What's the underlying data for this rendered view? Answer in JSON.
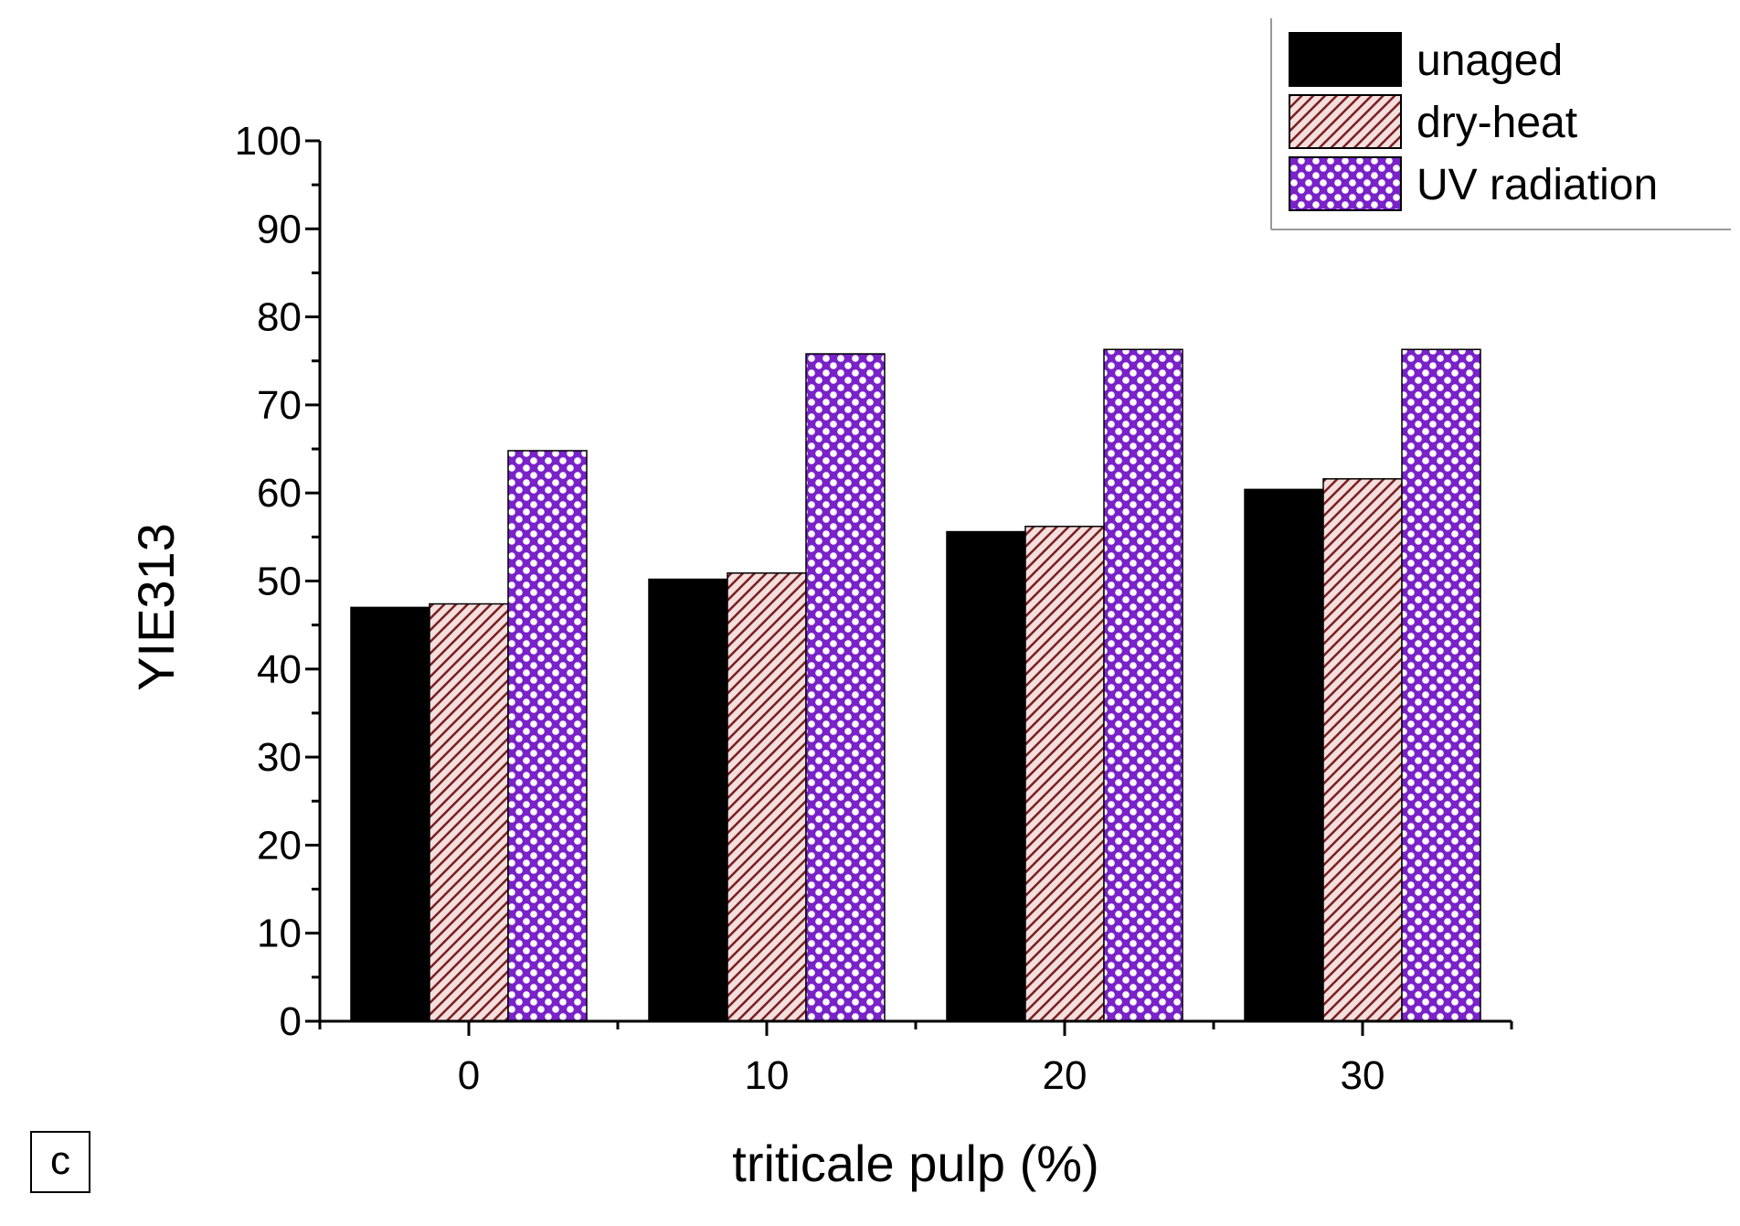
{
  "chart_data": {
    "type": "bar",
    "title": "",
    "xlabel": "triticale pulp (%)",
    "ylabel": "YIE313",
    "categories": [
      "0",
      "10",
      "20",
      "30"
    ],
    "series": [
      {
        "name": "unaged",
        "values": [
          47.0,
          50.2,
          55.6,
          60.4
        ],
        "color": "#000000",
        "pattern": "solid"
      },
      {
        "name": "dry-heat",
        "values": [
          47.4,
          50.9,
          56.2,
          61.6
        ],
        "color": "#7a1f1f",
        "pattern": "diagonal"
      },
      {
        "name": "UV radiation",
        "values": [
          64.8,
          75.8,
          76.3,
          76.3
        ],
        "color": "#7a22c9",
        "pattern": "crosshatch"
      }
    ],
    "ylim": [
      0,
      100
    ],
    "yticks": [
      "0",
      "10",
      "20",
      "30",
      "40",
      "50",
      "60",
      "70",
      "80",
      "90",
      "100"
    ],
    "grid": false,
    "legend_position": "top-right",
    "panel_label": "c"
  }
}
